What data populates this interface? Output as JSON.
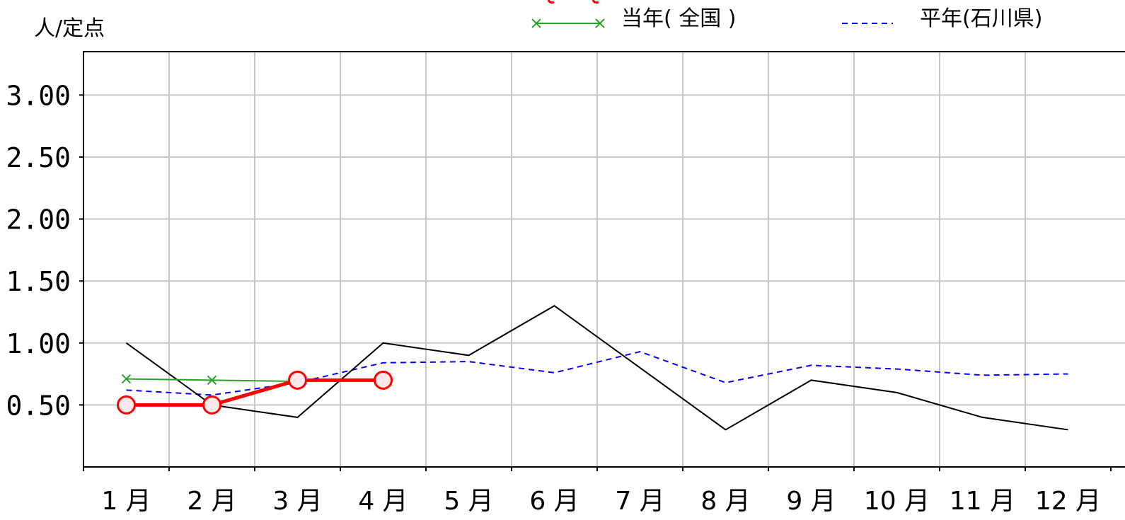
{
  "chart_data": {
    "type": "line",
    "ylabel": "人/定点",
    "categories": [
      "1 月",
      "2 月",
      "3 月",
      "4 月",
      "5 月",
      "6 月",
      "7 月",
      "8 月",
      "9 月",
      "10 月",
      "11 月",
      "12 月"
    ],
    "y_ticks": [
      "0.50",
      "1.00",
      "1.50",
      "2.00",
      "2.50",
      "3.00"
    ],
    "ylim": [
      0,
      3.35
    ],
    "grid": true,
    "legend_position": "top-right",
    "series": [
      {
        "name": "",
        "color": "#ff0000",
        "style": "thick-circle",
        "values": [
          0.5,
          0.5,
          0.7,
          0.7,
          null,
          null,
          null,
          null,
          null,
          null,
          null,
          null
        ]
      },
      {
        "name": "当年( 全国 )",
        "color": "#2ca02c",
        "style": "x-marker",
        "values": [
          0.71,
          0.7,
          0.69,
          null,
          null,
          null,
          null,
          null,
          null,
          null,
          null,
          null
        ]
      },
      {
        "name": "",
        "color": "#000000",
        "style": "solid",
        "values": [
          1.0,
          0.5,
          0.4,
          1.0,
          0.9,
          1.3,
          0.8,
          0.3,
          0.7,
          0.6,
          0.4,
          0.3
        ]
      },
      {
        "name": "平年(石川県)",
        "color": "#0000ff",
        "style": "dashed",
        "values": [
          0.62,
          0.58,
          0.68,
          0.84,
          0.85,
          0.76,
          0.93,
          0.68,
          0.82,
          0.79,
          0.74,
          0.75
        ]
      }
    ]
  }
}
